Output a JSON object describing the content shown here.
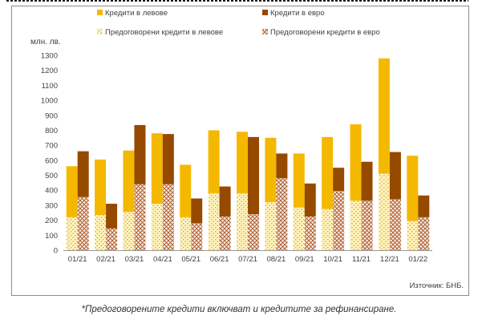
{
  "footnote": "*Предоговорените кредити включват и кредитите за рефинансиране.",
  "source": "Източник: БНБ.",
  "chart_data": {
    "type": "bar",
    "stacking": "stacked, two clustered stacks per category",
    "ylabel": "млн. лв.",
    "ylim": [
      0,
      1300
    ],
    "ytick_step": 100,
    "grid": false,
    "legend_position": "top",
    "categories": [
      "01/21",
      "02/21",
      "03/21",
      "04/21",
      "05/21",
      "06/21",
      "07/21",
      "08/21",
      "09/21",
      "10/21",
      "11/21",
      "12/21",
      "01/22"
    ],
    "yticks": [
      "0",
      "100",
      "200",
      "300",
      "400",
      "500",
      "600",
      "700",
      "800",
      "900",
      "1000",
      "1100",
      "1200",
      "1300"
    ],
    "series": [
      {
        "name": "Кредити в левове",
        "color": "#f5b800",
        "pattern": "solid",
        "stack": "bgn",
        "values": [
          340,
          370,
          410,
          470,
          350,
          420,
          410,
          430,
          360,
          480,
          510,
          770,
          435
        ]
      },
      {
        "name": "Кредити в евро",
        "color": "#954a00",
        "pattern": "solid",
        "stack": "eur",
        "values": [
          305,
          165,
          395,
          335,
          165,
          200,
          515,
          165,
          220,
          155,
          260,
          315,
          145
        ]
      },
      {
        "name": "Предоговорени кредити в левове",
        "color": "#f5b800",
        "pattern": "dots",
        "stack": "bgn",
        "values": [
          220,
          235,
          255,
          310,
          220,
          380,
          380,
          320,
          285,
          275,
          330,
          510,
          195
        ]
      },
      {
        "name": "Предоговорени кредити в евро",
        "color": "#954a00",
        "pattern": "crosshatch",
        "stack": "eur",
        "values": [
          355,
          145,
          440,
          440,
          180,
          225,
          240,
          480,
          225,
          395,
          330,
          340,
          220
        ]
      }
    ]
  }
}
